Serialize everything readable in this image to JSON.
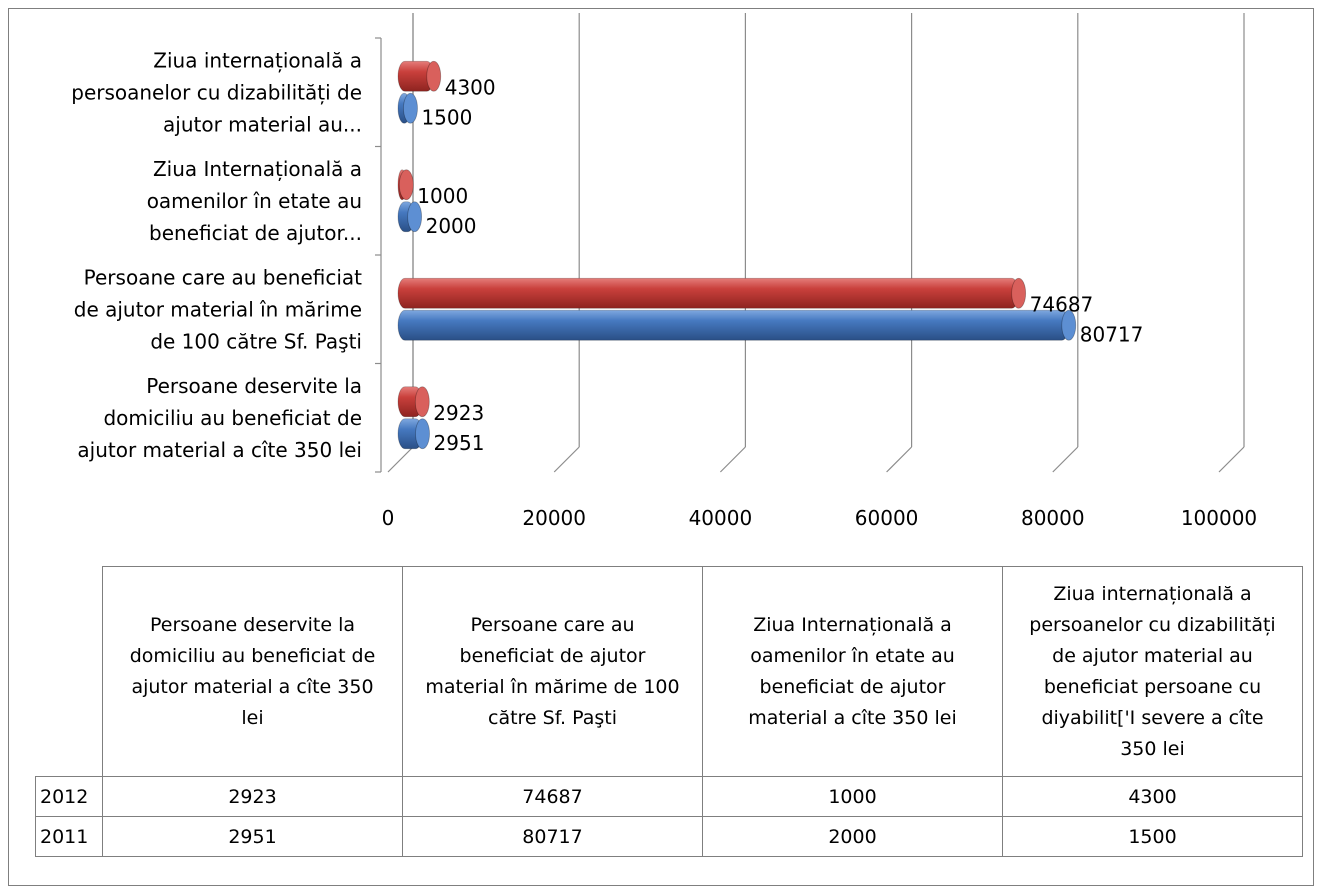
{
  "chart_data": {
    "type": "bar",
    "orientation": "horizontal",
    "style": "3d-cylinder",
    "categories": [
      [
        "Persoane deservite la",
        "domiciliu au beneficiat de",
        "ajutor material a cîte 350 lei"
      ],
      [
        "Persoane care au beneficiat",
        "de ajutor material în mărime",
        "de 100 către Sf. Paşti"
      ],
      [
        "Ziua Internațională a",
        "oamenilor în etate au",
        "beneficiat de ajutor..."
      ],
      [
        "Ziua internațională a",
        "persoanelor cu dizabilități de",
        "ajutor material au..."
      ]
    ],
    "series": [
      {
        "name": "2012",
        "color": "#c0392b",
        "values": [
          2923,
          74687,
          1000,
          4300
        ]
      },
      {
        "name": "2011",
        "color": "#3a6fb5",
        "values": [
          2951,
          80717,
          2000,
          1500
        ]
      }
    ],
    "xlim": [
      0,
      100000
    ],
    "xticks": [
      "0",
      "20000",
      "40000",
      "60000",
      "80000",
      "100000"
    ],
    "grid": true,
    "legend": "data table below chart",
    "data_labels": {
      "2012": [
        "2923",
        "74687",
        "1000",
        "4300"
      ],
      "2011": [
        "2951",
        "80717",
        "2000",
        "1500"
      ]
    }
  },
  "table": {
    "headers": [
      [
        "Persoane deservite la",
        "domiciliu au beneficiat de",
        "ajutor material a cîte 350",
        "lei"
      ],
      [
        "Persoane care au",
        "beneficiat de ajutor",
        "material în mărime de 100",
        "către Sf. Paşti"
      ],
      [
        "Ziua Internațională a",
        "oamenilor în etate au",
        "beneficiat de ajutor",
        "material a cîte 350 lei"
      ],
      [
        "Ziua internațională a",
        "persoanelor cu dizabilități",
        "de ajutor material au",
        "beneficiat persoane cu",
        "diyabilit['I severe a cîte",
        "350 lei"
      ]
    ],
    "rows": [
      {
        "label": "2012",
        "values": [
          "2923",
          "74687",
          "1000",
          "4300"
        ]
      },
      {
        "label": "2011",
        "values": [
          "2951",
          "80717",
          "2000",
          "1500"
        ]
      }
    ]
  }
}
